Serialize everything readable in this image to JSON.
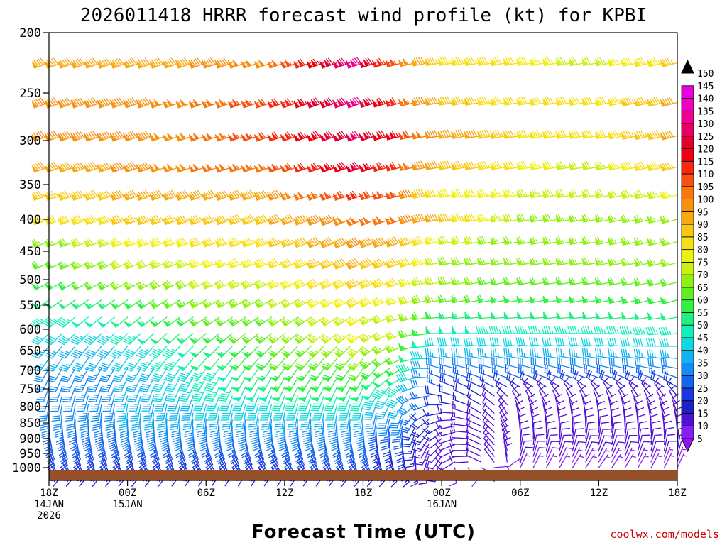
{
  "chart_data": {
    "type": "wind_barb_profile",
    "title": "2026011418 HRRR forecast wind profile (kt) for KPBI",
    "xlabel": "Forecast Time (UTC)",
    "ylabel": "",
    "credit": "coolwx.com/models",
    "y_axis": {
      "scale": "pressure_hPa_inverted",
      "ylim": [
        200,
        1030
      ],
      "ticks": [
        "200",
        "250",
        "300",
        "350",
        "400",
        "450",
        "500",
        "550",
        "600",
        "650",
        "700",
        "750",
        "800",
        "850",
        "900",
        "950",
        "1000"
      ]
    },
    "x_axis": {
      "range_hours": [
        0,
        48
      ],
      "ticks": [
        {
          "hour": 0,
          "lines": [
            "18Z",
            "14JAN",
            "2026"
          ]
        },
        {
          "hour": 6,
          "lines": [
            "00Z",
            "15JAN"
          ]
        },
        {
          "hour": 12,
          "lines": [
            "06Z"
          ]
        },
        {
          "hour": 18,
          "lines": [
            "12Z"
          ]
        },
        {
          "hour": 24,
          "lines": [
            "18Z"
          ]
        },
        {
          "hour": 30,
          "lines": [
            "00Z",
            "16JAN"
          ]
        },
        {
          "hour": 36,
          "lines": [
            "06Z"
          ]
        },
        {
          "hour": 42,
          "lines": [
            "12Z"
          ]
        },
        {
          "hour": 48,
          "lines": [
            "18Z"
          ]
        }
      ]
    },
    "colorbar": {
      "unit": "kt",
      "levels": [
        5,
        10,
        15,
        20,
        25,
        30,
        35,
        40,
        45,
        50,
        55,
        60,
        65,
        70,
        75,
        80,
        85,
        90,
        95,
        100,
        105,
        110,
        115,
        120,
        125,
        130,
        135,
        140,
        145,
        150
      ],
      "colors": [
        "#8a1ef0",
        "#5010d8",
        "#2020c8",
        "#1838e0",
        "#1464f0",
        "#148cf5",
        "#10b4f0",
        "#10d8e0",
        "#10f0b8",
        "#20f080",
        "#30f040",
        "#60f020",
        "#90f010",
        "#c8f010",
        "#f0f010",
        "#f8e010",
        "#f8c810",
        "#f8a810",
        "#f89010",
        "#f87810",
        "#f85010",
        "#f82810",
        "#f00010",
        "#e00030",
        "#e80060",
        "#f00090",
        "#f000c0",
        "#e800e0"
      ]
    },
    "profile_levels_hPa": [
      225,
      260,
      295,
      330,
      365,
      400,
      435,
      470,
      505,
      540,
      575,
      610,
      640,
      670,
      695,
      720,
      745,
      770,
      795,
      820,
      840,
      860,
      880,
      900,
      920,
      940,
      960,
      980,
      1000
    ],
    "anchor_hours": [
      0,
      6,
      12,
      18,
      24,
      27,
      30,
      36,
      42,
      48
    ],
    "speed_kt_by_level": [
      [
        90,
        90,
        95,
        100,
        130,
        105,
        85,
        80,
        70,
        85
      ],
      [
        95,
        95,
        100,
        110,
        130,
        110,
        90,
        80,
        80,
        90
      ],
      [
        95,
        95,
        100,
        110,
        125,
        115,
        95,
        85,
        80,
        90
      ],
      [
        90,
        95,
        100,
        105,
        120,
        110,
        90,
        80,
        70,
        85
      ],
      [
        85,
        90,
        90,
        95,
        110,
        105,
        80,
        75,
        70,
        75
      ],
      [
        80,
        85,
        85,
        90,
        100,
        100,
        90,
        70,
        65,
        65
      ],
      [
        65,
        75,
        80,
        85,
        95,
        90,
        75,
        65,
        65,
        65
      ],
      [
        60,
        70,
        75,
        80,
        90,
        85,
        70,
        65,
        65,
        65
      ],
      [
        55,
        65,
        70,
        75,
        85,
        80,
        70,
        60,
        60,
        60
      ],
      [
        50,
        55,
        65,
        70,
        80,
        75,
        65,
        55,
        55,
        55
      ],
      [
        45,
        50,
        60,
        65,
        75,
        70,
        55,
        50,
        50,
        50
      ],
      [
        40,
        45,
        55,
        65,
        75,
        70,
        50,
        45,
        45,
        45
      ],
      [
        35,
        40,
        50,
        60,
        70,
        65,
        40,
        40,
        40,
        40
      ],
      [
        35,
        40,
        50,
        60,
        65,
        60,
        35,
        35,
        35,
        35
      ],
      [
        30,
        35,
        45,
        55,
        60,
        55,
        30,
        30,
        30,
        30
      ],
      [
        30,
        35,
        45,
        55,
        55,
        50,
        25,
        25,
        25,
        25
      ],
      [
        30,
        35,
        45,
        50,
        50,
        45,
        25,
        20,
        20,
        20
      ],
      [
        30,
        35,
        40,
        45,
        45,
        40,
        20,
        15,
        10,
        15
      ],
      [
        30,
        35,
        40,
        40,
        40,
        35,
        20,
        10,
        10,
        10
      ],
      [
        30,
        35,
        35,
        35,
        35,
        30,
        15,
        10,
        10,
        10
      ],
      [
        30,
        30,
        30,
        35,
        30,
        30,
        15,
        10,
        10,
        10
      ],
      [
        25,
        30,
        30,
        30,
        30,
        25,
        15,
        10,
        10,
        10
      ],
      [
        25,
        30,
        30,
        30,
        30,
        25,
        15,
        10,
        10,
        10
      ],
      [
        25,
        25,
        25,
        25,
        25,
        20,
        10,
        10,
        10,
        10
      ],
      [
        25,
        25,
        25,
        25,
        25,
        20,
        10,
        10,
        10,
        10
      ],
      [
        20,
        20,
        20,
        25,
        25,
        20,
        10,
        10,
        10,
        10
      ],
      [
        20,
        20,
        20,
        20,
        20,
        15,
        10,
        10,
        10,
        10
      ],
      [
        20,
        20,
        20,
        20,
        20,
        15,
        10,
        10,
        5,
        5
      ],
      [
        15,
        15,
        15,
        15,
        15,
        15,
        10,
        5,
        5,
        5
      ]
    ],
    "direction_deg_by_level": [
      [
        250,
        250,
        250,
        250,
        250,
        255,
        260,
        260,
        260,
        255
      ],
      [
        250,
        250,
        250,
        250,
        250,
        255,
        260,
        260,
        260,
        255
      ],
      [
        250,
        250,
        250,
        250,
        250,
        255,
        260,
        260,
        260,
        255
      ],
      [
        250,
        250,
        250,
        250,
        250,
        255,
        260,
        260,
        260,
        255
      ],
      [
        250,
        250,
        250,
        250,
        250,
        255,
        260,
        260,
        260,
        255
      ],
      [
        250,
        250,
        250,
        250,
        245,
        250,
        260,
        260,
        260,
        255
      ],
      [
        250,
        250,
        250,
        250,
        245,
        250,
        260,
        260,
        260,
        255
      ],
      [
        245,
        245,
        250,
        250,
        245,
        250,
        260,
        260,
        260,
        255
      ],
      [
        240,
        240,
        245,
        245,
        245,
        250,
        260,
        260,
        260,
        255
      ],
      [
        235,
        235,
        240,
        240,
        240,
        250,
        260,
        260,
        260,
        255
      ],
      [
        230,
        230,
        235,
        235,
        235,
        250,
        265,
        265,
        265,
        260
      ],
      [
        225,
        225,
        230,
        230,
        230,
        245,
        270,
        270,
        270,
        265
      ],
      [
        220,
        220,
        225,
        225,
        225,
        245,
        275,
        275,
        275,
        270
      ],
      [
        215,
        215,
        220,
        220,
        220,
        245,
        280,
        280,
        280,
        275
      ],
      [
        210,
        210,
        215,
        215,
        215,
        240,
        285,
        285,
        285,
        280
      ],
      [
        205,
        205,
        210,
        210,
        210,
        240,
        290,
        290,
        290,
        290
      ],
      [
        200,
        200,
        205,
        205,
        205,
        230,
        290,
        300,
        310,
        300
      ],
      [
        195,
        195,
        200,
        200,
        200,
        220,
        280,
        320,
        330,
        320
      ],
      [
        190,
        190,
        195,
        195,
        195,
        210,
        270,
        330,
        340,
        330
      ],
      [
        185,
        185,
        190,
        190,
        190,
        200,
        260,
        340,
        350,
        340
      ],
      [
        180,
        180,
        185,
        185,
        185,
        195,
        250,
        345,
        355,
        345
      ],
      [
        175,
        175,
        180,
        180,
        180,
        190,
        240,
        350,
        0,
        350
      ],
      [
        170,
        170,
        175,
        175,
        175,
        185,
        235,
        355,
        5,
        355
      ],
      [
        165,
        165,
        170,
        165,
        170,
        180,
        230,
        0,
        10,
        0
      ],
      [
        160,
        160,
        160,
        160,
        165,
        175,
        225,
        5,
        15,
        5
      ],
      [
        160,
        160,
        155,
        155,
        160,
        170,
        220,
        10,
        20,
        10
      ],
      [
        155,
        155,
        150,
        150,
        155,
        165,
        215,
        15,
        25,
        15
      ],
      [
        150,
        150,
        145,
        145,
        150,
        160,
        210,
        20,
        30,
        20
      ],
      [
        145,
        145,
        140,
        140,
        145,
        155,
        205,
        25,
        35,
        25
      ]
    ]
  }
}
